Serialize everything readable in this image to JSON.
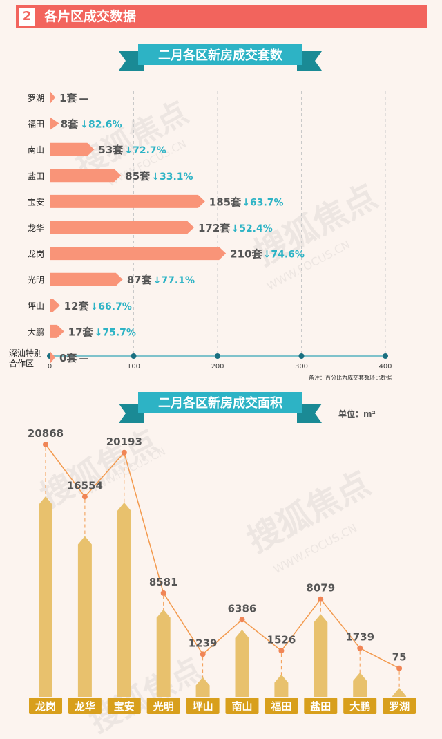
{
  "header": {
    "number": "2",
    "title": "各片区成交数据"
  },
  "chart_data": [
    {
      "type": "bar",
      "title": "二月各区新房成交套数",
      "unit_suffix": "套",
      "xlim": [
        0,
        400
      ],
      "xticks": [
        "0",
        "100",
        "200",
        "300",
        "400"
      ],
      "note": "备注：百分比为成交套数环比数据",
      "categories": [
        "罗湖",
        "福田",
        "南山",
        "盐田",
        "宝安",
        "龙华",
        "龙岗",
        "光明",
        "坪山",
        "大鹏",
        "深汕特别合作区"
      ],
      "values": [
        1,
        8,
        53,
        85,
        185,
        172,
        210,
        87,
        12,
        17,
        0
      ],
      "changes": [
        "—",
        "↓82.6%",
        "↓72.7%",
        "↓33.1%",
        "↓63.7%",
        "↓52.4%",
        "↓74.6%",
        "↓77.1%",
        "↓66.7%",
        "↓75.7%",
        "—"
      ],
      "colors": {
        "bar": "#f99478",
        "change": "#2db3c5",
        "axis": "#7fc2cb",
        "value": "#555555"
      }
    },
    {
      "type": "bar",
      "title": "二月各区新房成交面积",
      "unit_label": "单位：m²",
      "categories": [
        "龙岗",
        "龙华",
        "宝安",
        "光明",
        "坪山",
        "南山",
        "福田",
        "盐田",
        "大鹏",
        "罗湖"
      ],
      "values": [
        20868,
        16554,
        20193,
        8581,
        1239,
        6386,
        1526,
        8079,
        1739,
        75
      ],
      "colors": {
        "bar": "#e8c16d",
        "line": "#f39a4e",
        "point": "#f08556",
        "label_bg": "#d89f1c"
      }
    }
  ],
  "watermark": {
    "cn": "搜狐焦点",
    "en": "WWW.FOCUS.CN"
  }
}
